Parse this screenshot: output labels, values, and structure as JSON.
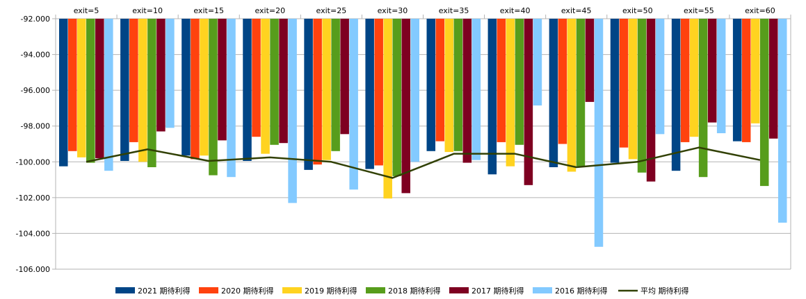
{
  "chart_data": {
    "type": "bar",
    "categories": [
      "exit=5",
      "exit=10",
      "exit=15",
      "exit=20",
      "exit=25",
      "exit=30",
      "exit=35",
      "exit=40",
      "exit=45",
      "exit=50",
      "exit=55",
      "exit=60"
    ],
    "ylim": [
      -106000,
      -92000
    ],
    "yticks": [
      -92000,
      -94000,
      -96000,
      -98000,
      -100000,
      -102000,
      -104000,
      -106000
    ],
    "ytick_labels": [
      "-92.000",
      "-94.000",
      "-96.000",
      "-98.000",
      "-100.000",
      "-102.000",
      "-104.000",
      "-106.000"
    ],
    "grid": true,
    "legend_position": "bottom",
    "series": [
      {
        "name": "2021 期待利得",
        "type": "bar",
        "color": "#004586",
        "values": [
          -100250,
          -99950,
          -99650,
          -99950,
          -100450,
          -100400,
          -99400,
          -100700,
          -100300,
          -100050,
          -100500,
          -98850
        ]
      },
      {
        "name": "2020 期待利得",
        "type": "bar",
        "color": "#ff420e",
        "values": [
          -99400,
          -98900,
          -99850,
          -98600,
          -100150,
          -100200,
          -98850,
          -98900,
          -99000,
          -99200,
          -98900,
          -98900
        ]
      },
      {
        "name": "2019 期待利得",
        "type": "bar",
        "color": "#ffd320",
        "values": [
          -99750,
          -100000,
          -99650,
          -99550,
          -99900,
          -102050,
          -99450,
          -100250,
          -100550,
          -99850,
          -98600,
          -97850
        ]
      },
      {
        "name": "2018 期待利得",
        "type": "bar",
        "color": "#579d1c",
        "values": [
          -100050,
          -100300,
          -100750,
          -99050,
          -99400,
          -100800,
          -99400,
          -99050,
          -100250,
          -100600,
          -100850,
          -101350
        ]
      },
      {
        "name": "2017 期待利得",
        "type": "bar",
        "color": "#7e0021",
        "values": [
          -99800,
          -98300,
          -98800,
          -98950,
          -98450,
          -101750,
          -100050,
          -101300,
          -96650,
          -101100,
          -97800,
          -98700
        ]
      },
      {
        "name": "2016 期待利得",
        "type": "bar",
        "color": "#83caff",
        "values": [
          -100500,
          -98100,
          -100850,
          -102300,
          -101550,
          -100000,
          -99900,
          -96850,
          -104750,
          -98450,
          -98400,
          -103400
        ]
      },
      {
        "name": "平均 期待利得",
        "type": "line",
        "color": "#314004",
        "values": [
          -100000,
          -99300,
          -99950,
          -99750,
          -100000,
          -100900,
          -99550,
          -99550,
          -100300,
          -100000,
          -99200,
          -99900
        ]
      }
    ]
  }
}
